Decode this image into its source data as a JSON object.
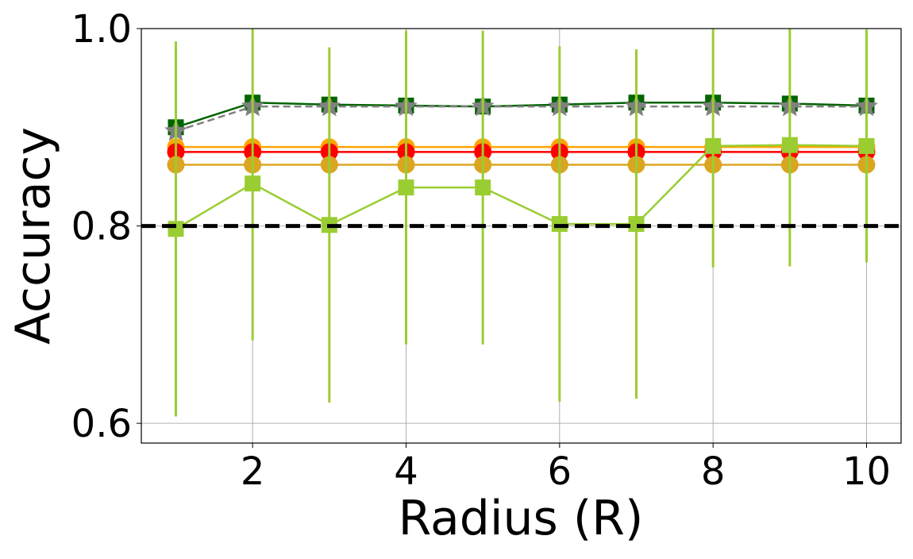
{
  "chart_data": {
    "type": "line",
    "x": [
      1,
      2,
      3,
      4,
      5,
      6,
      7,
      8,
      9,
      10
    ],
    "xlabel": "Radius (R)",
    "ylabel": "Accuracy",
    "xlim": [
      0.55,
      10.45
    ],
    "ylim": [
      0.58,
      1.0
    ],
    "xticks": [
      2,
      4,
      6,
      8,
      10
    ],
    "yticks": [
      0.6,
      0.8,
      {
        "value": 1,
        "label": "1.0"
      }
    ],
    "grid": true,
    "hline": {
      "value": 0.8,
      "color": "#000000",
      "style": "dashed"
    },
    "series": [
      {
        "color": "#006400",
        "marker": "square",
        "style": "solid",
        "values": [
          0.9,
          0.925,
          0.923,
          0.922,
          0.921,
          0.923,
          0.925,
          0.925,
          0.924,
          0.922
        ]
      },
      {
        "color": "#808080",
        "marker": "star",
        "style": "dashed",
        "values": [
          0.896,
          0.921,
          0.921,
          0.921,
          0.921,
          0.921,
          0.921,
          0.921,
          0.921,
          0.921
        ]
      },
      {
        "color": "#FFA500",
        "marker": "circle",
        "style": "solid",
        "values": [
          0.88,
          0.88,
          0.88,
          0.88,
          0.88,
          0.88,
          0.88,
          0.88,
          0.88,
          0.88
        ]
      },
      {
        "color": "#FF0000",
        "marker": "circle",
        "style": "solid",
        "values": [
          0.875,
          0.875,
          0.875,
          0.875,
          0.875,
          0.875,
          0.875,
          0.875,
          0.875,
          0.875
        ]
      },
      {
        "color": "#DAA520",
        "marker": "circle",
        "style": "solid",
        "values": [
          0.862,
          0.862,
          0.862,
          0.862,
          0.862,
          0.862,
          0.862,
          0.862,
          0.862,
          0.862
        ]
      },
      {
        "color": "#9ACD32",
        "marker": "square",
        "style": "solid",
        "values": [
          0.797,
          0.843,
          0.801,
          0.839,
          0.839,
          0.802,
          0.802,
          0.881,
          0.882,
          0.881
        ],
        "errors": [
          0.19,
          0.159,
          0.18,
          0.159,
          0.159,
          0.18,
          0.177,
          0.123,
          0.123,
          0.118
        ]
      }
    ]
  }
}
